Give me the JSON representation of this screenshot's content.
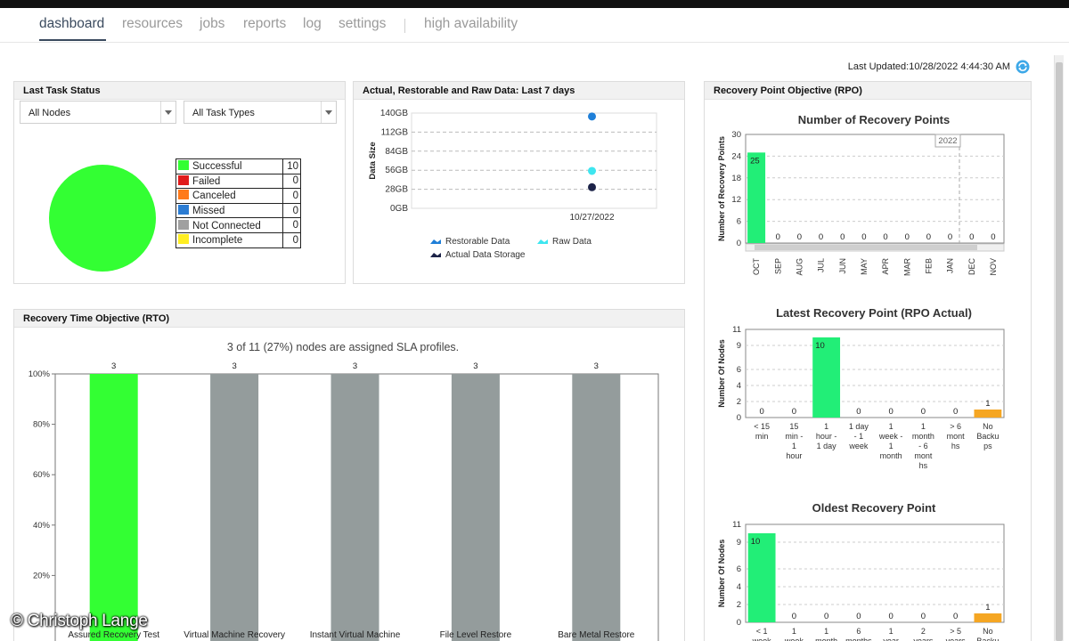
{
  "nav": {
    "items": [
      "dashboard",
      "resources",
      "jobs",
      "reports",
      "log",
      "settings"
    ],
    "extra": "high availability",
    "active": "dashboard"
  },
  "last_updated": "Last Updated:10/28/2022 4:44:30 AM",
  "last_task_status": {
    "title": "Last Task Status",
    "node_filter": "All Nodes",
    "task_filter": "All Task Types",
    "legend": [
      {
        "label": "Successful",
        "count": "10",
        "color": "#33ff33"
      },
      {
        "label": "Failed",
        "count": "0",
        "color": "#e01b1b"
      },
      {
        "label": "Canceled",
        "count": "0",
        "color": "#ff7a1a"
      },
      {
        "label": "Missed",
        "count": "0",
        "color": "#2b7cd3"
      },
      {
        "label": "Not Connected",
        "count": "0",
        "color": "#a0a0a0"
      },
      {
        "label": "Incomplete",
        "count": "0",
        "color": "#ffee22"
      }
    ]
  },
  "data_panel": {
    "title": "Actual, Restorable and Raw Data: Last 7 days",
    "chart_data": {
      "type": "scatter",
      "ylabel": "Data Size",
      "y_ticks": [
        "140GB",
        "112GB",
        "84GB",
        "56GB",
        "28GB",
        "0GB"
      ],
      "ylim_gb": [
        0,
        140
      ],
      "categories": [
        "10/27/2022"
      ],
      "series": [
        {
          "name": "Restorable Data",
          "color": "#1f7fd8",
          "values": [
            135
          ]
        },
        {
          "name": "Raw Data",
          "color": "#3ee6f0",
          "values": [
            55
          ]
        },
        {
          "name": "Actual Data Storage",
          "color": "#1c2348",
          "values": [
            31
          ]
        }
      ]
    }
  },
  "rpo_panel": {
    "title": "Recovery Point Objective (RPO)",
    "charts": [
      {
        "type": "bar",
        "title": "Number of Recovery Points",
        "ylabel": "Number of Recovery Points",
        "y_ticks": [
          "0",
          "6",
          "12",
          "18",
          "24",
          "30"
        ],
        "ylim": [
          0,
          30
        ],
        "marker_label": "2022",
        "categories": [
          "OCT",
          "SEP",
          "AUG",
          "JUL",
          "JUN",
          "MAY",
          "APR",
          "MAR",
          "FEB",
          "JAN",
          "DEC",
          "NOV"
        ],
        "values": [
          25,
          0,
          0,
          0,
          0,
          0,
          0,
          0,
          0,
          0,
          0,
          0
        ],
        "value_labels": [
          "25",
          "0",
          "0",
          "0",
          "0",
          "0",
          "0",
          "0",
          "0",
          "0",
          "0",
          "0"
        ]
      },
      {
        "type": "bar",
        "title": "Latest Recovery Point (RPO Actual)",
        "ylabel": "Number Of Nodes",
        "y_ticks": [
          "0",
          "2",
          "4",
          "6",
          "9",
          "11"
        ],
        "ylim": [
          0,
          11
        ],
        "categories": [
          [
            "< 15",
            "min"
          ],
          [
            "15",
            "min -",
            "1",
            "hour"
          ],
          [
            "1",
            "hour -",
            "1 day"
          ],
          [
            "1 day",
            "- 1",
            "week"
          ],
          [
            "1",
            "week -",
            "1",
            "month"
          ],
          [
            "1",
            "month",
            "- 6",
            "mont",
            "hs"
          ],
          [
            "> 6",
            "mont",
            "hs"
          ],
          [
            "No",
            "Backu",
            "ps"
          ]
        ],
        "values": [
          0,
          0,
          10,
          0,
          0,
          0,
          0,
          1
        ],
        "value_labels": [
          "0",
          "0",
          "10",
          "0",
          "0",
          "0",
          "0",
          "1"
        ]
      },
      {
        "type": "bar",
        "title": "Oldest Recovery Point",
        "ylabel": "Number Of Nodes",
        "y_ticks": [
          "0",
          "2",
          "4",
          "6",
          "9",
          "11"
        ],
        "ylim": [
          0,
          11
        ],
        "categories": [
          [
            "< 1",
            "week"
          ],
          [
            "1",
            "week"
          ],
          [
            "1",
            "month"
          ],
          [
            "6",
            "months"
          ],
          [
            "1",
            "year"
          ],
          [
            "2",
            "years"
          ],
          [
            "> 5",
            "years"
          ],
          [
            "No",
            "Backu"
          ]
        ],
        "values": [
          10,
          0,
          0,
          0,
          0,
          0,
          0,
          1
        ],
        "value_labels": [
          "10",
          "0",
          "0",
          "0",
          "0",
          "0",
          "0",
          "1"
        ]
      }
    ]
  },
  "rto_panel": {
    "title": "Recovery Time Objective (RTO)",
    "sla_text": "3 of 11 (27%) nodes are assigned SLA profiles.",
    "chart_data": {
      "type": "bar",
      "y_ticks": [
        "100%",
        "80%",
        "60%",
        "40%",
        "20%"
      ],
      "ylim": [
        0,
        100
      ],
      "categories": [
        "Assured Recovery Test",
        "Virtual Machine Recovery",
        "Instant Virtual Machine",
        "File Level Restore",
        "Bare Metal Restore"
      ],
      "values": [
        100,
        100,
        100,
        100,
        100
      ],
      "value_labels": [
        "3",
        "3",
        "3",
        "3",
        "3"
      ],
      "colors": [
        "#33ff33",
        "#949c9c",
        "#949c9c",
        "#949c9c",
        "#949c9c"
      ]
    }
  },
  "colors": {
    "green": "#33ff33",
    "rpo_green": "#22ee77",
    "rpo_orange": "#f5a623",
    "gray_bar": "#949c9c"
  },
  "watermark": "© Christoph Lange"
}
